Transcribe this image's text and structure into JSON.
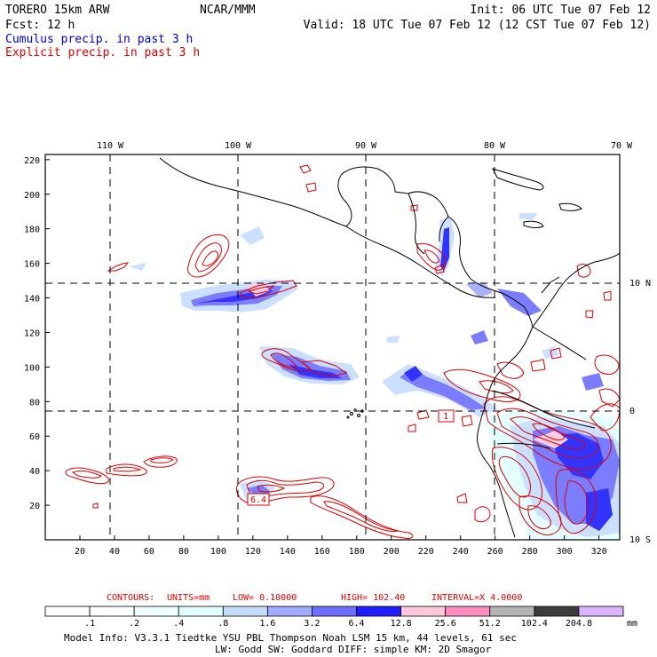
{
  "header": {
    "model": "TORERO  15km ARW",
    "center": "NCAR/MMM",
    "init": "Init: 06 UTC Tue 07 Feb 12",
    "fcst": "Fcst:   12 h",
    "valid": "Valid: 18 UTC Tue 07 Feb 12 (12 CST Tue 07 Feb 12)",
    "field_cumulus": "Cumulus precip. in past 3 h",
    "field_explicit": "Explicit precip. in past 3 h"
  },
  "map": {
    "lon_labels": [
      "110 W",
      "100 W",
      "90 W",
      "80 W",
      "70 W"
    ],
    "lat_labels": [
      "10 N",
      "0",
      "10 S"
    ],
    "x_ticks": [
      "20",
      "40",
      "60",
      "80",
      "100",
      "120",
      "140",
      "160",
      "180",
      "200",
      "220",
      "240",
      "260",
      "280",
      "300",
      "320"
    ],
    "y_ticks": [
      "20",
      "40",
      "60",
      "80",
      "100",
      "120",
      "140",
      "160",
      "180",
      "200",
      "220"
    ],
    "contour_labels": [
      "6.4",
      "1"
    ]
  },
  "colorbar": {
    "title_prefix": "CONTOURS:",
    "units": "UNITS=mm",
    "low": "LOW= 0.10000",
    "high": "HIGH=  102.40",
    "interval": "INTERVAL=X  4.0000",
    "labels": [
      ".1",
      ".2",
      ".4",
      ".8",
      "1.6",
      "3.2",
      "6.4",
      "12.8",
      "25.6",
      "51.2",
      "102.4",
      "204.8"
    ],
    "unit": "mm",
    "colors": [
      "#ffffff",
      "#ffffff",
      "#f0ffff",
      "#e1ffff",
      "#c6dcff",
      "#a0aaff",
      "#6e6eff",
      "#1e1eff",
      "#ffc8dc",
      "#ff8cbe",
      "#b4b4b4",
      "#3c3c3c",
      "#dcb4ff"
    ]
  },
  "footer": {
    "line1": "Model Info: V3.3.1   Tiedtke YSU PBL  Thompson    Noah LSM  15 km,   44 levels,   61 sec",
    "line2": "LW: Godd SW: Goddard DIFF: simple KM: 2D Smagor"
  },
  "colors": {
    "cumulus": "#0000cc",
    "explicit": "#dd0000",
    "land": "#000000"
  }
}
